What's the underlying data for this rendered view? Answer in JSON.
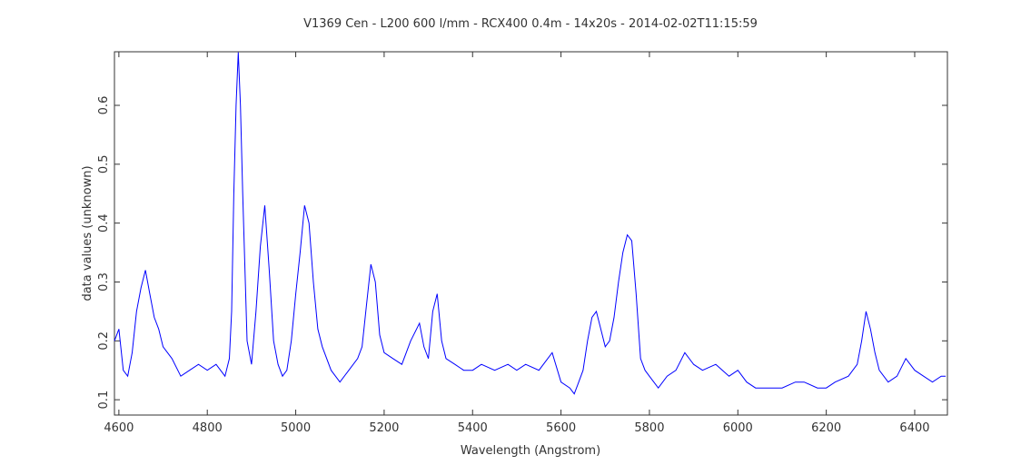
{
  "chart_data": {
    "type": "line",
    "title": "V1369 Cen - L200 600 l/mm - RCX400 0.4m - 14x20s - 2014-02-02T11:15:59",
    "x_label": "Wavelength (Angstrom)",
    "y_label": "data values (unknown)",
    "x": [
      4590,
      4600,
      4610,
      4620,
      4630,
      4640,
      4650,
      4660,
      4670,
      4680,
      4690,
      4700,
      4720,
      4740,
      4760,
      4780,
      4800,
      4820,
      4840,
      4850,
      4855,
      4860,
      4865,
      4870,
      4875,
      4880,
      4890,
      4900,
      4910,
      4920,
      4930,
      4940,
      4950,
      4960,
      4970,
      4980,
      4990,
      5000,
      5010,
      5020,
      5030,
      5040,
      5050,
      5060,
      5080,
      5100,
      5120,
      5140,
      5150,
      5160,
      5170,
      5180,
      5190,
      5200,
      5220,
      5240,
      5260,
      5280,
      5290,
      5300,
      5310,
      5320,
      5330,
      5340,
      5360,
      5380,
      5400,
      5420,
      5450,
      5480,
      5500,
      5520,
      5550,
      5570,
      5580,
      5600,
      5620,
      5630,
      5640,
      5650,
      5660,
      5670,
      5680,
      5690,
      5700,
      5710,
      5720,
      5730,
      5740,
      5750,
      5760,
      5770,
      5780,
      5790,
      5800,
      5820,
      5840,
      5860,
      5880,
      5900,
      5920,
      5950,
      5980,
      6000,
      6020,
      6040,
      6070,
      6100,
      6130,
      6150,
      6180,
      6200,
      6220,
      6250,
      6270,
      6280,
      6290,
      6300,
      6310,
      6320,
      6340,
      6360,
      6380,
      6400,
      6420,
      6440,
      6460,
      6470
    ],
    "series": [
      {
        "name": "spectrum",
        "color": "#0000ff",
        "values": [
          0.2,
          0.22,
          0.15,
          0.14,
          0.18,
          0.25,
          0.29,
          0.32,
          0.28,
          0.24,
          0.22,
          0.19,
          0.17,
          0.14,
          0.15,
          0.16,
          0.15,
          0.16,
          0.14,
          0.17,
          0.25,
          0.45,
          0.6,
          0.69,
          0.6,
          0.45,
          0.2,
          0.16,
          0.25,
          0.36,
          0.43,
          0.32,
          0.2,
          0.16,
          0.14,
          0.15,
          0.2,
          0.28,
          0.35,
          0.43,
          0.4,
          0.3,
          0.22,
          0.19,
          0.15,
          0.13,
          0.15,
          0.17,
          0.19,
          0.26,
          0.33,
          0.3,
          0.21,
          0.18,
          0.17,
          0.16,
          0.2,
          0.23,
          0.19,
          0.17,
          0.25,
          0.28,
          0.2,
          0.17,
          0.16,
          0.15,
          0.15,
          0.16,
          0.15,
          0.16,
          0.15,
          0.16,
          0.15,
          0.17,
          0.18,
          0.13,
          0.12,
          0.11,
          0.13,
          0.15,
          0.2,
          0.24,
          0.25,
          0.22,
          0.19,
          0.2,
          0.24,
          0.3,
          0.35,
          0.38,
          0.37,
          0.28,
          0.17,
          0.15,
          0.14,
          0.12,
          0.14,
          0.15,
          0.18,
          0.16,
          0.15,
          0.16,
          0.14,
          0.15,
          0.13,
          0.12,
          0.12,
          0.12,
          0.13,
          0.13,
          0.12,
          0.12,
          0.13,
          0.14,
          0.16,
          0.2,
          0.25,
          0.22,
          0.18,
          0.15,
          0.13,
          0.14,
          0.17,
          0.15,
          0.14,
          0.13,
          0.14,
          0.14
        ]
      }
    ],
    "xlim": [
      4590,
      6474
    ],
    "ylim": [
      0.074,
      0.691
    ],
    "xticks": [
      4600,
      4800,
      5000,
      5200,
      5400,
      5600,
      5800,
      6000,
      6200,
      6400
    ],
    "yticks": [
      0.1,
      0.2,
      0.3,
      0.4,
      0.5,
      0.6
    ]
  }
}
